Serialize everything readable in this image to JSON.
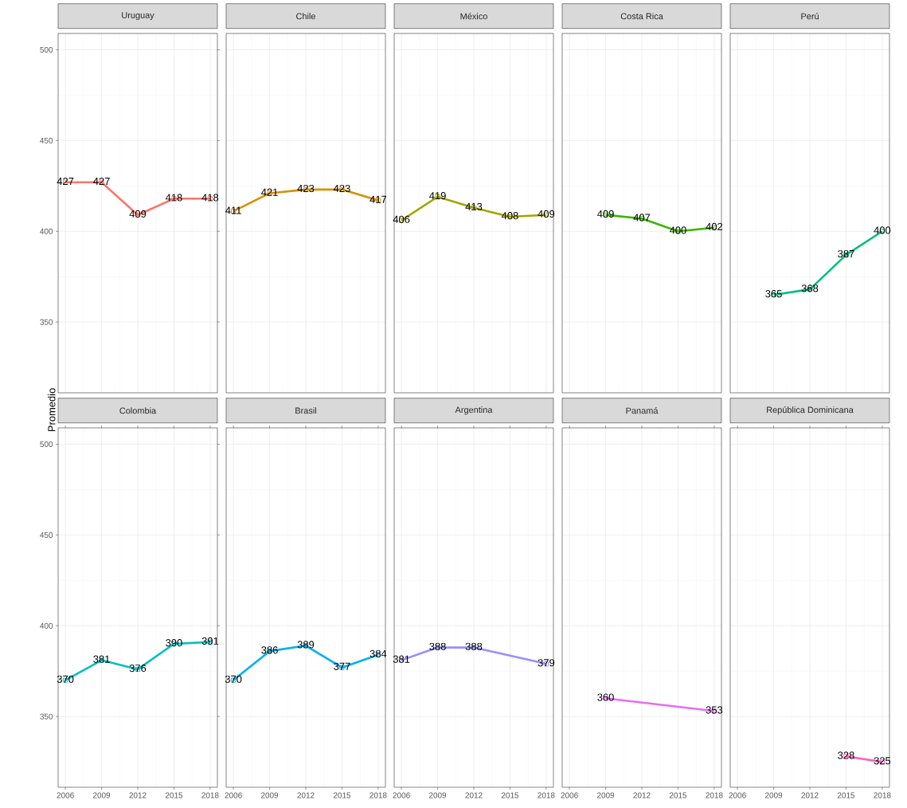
{
  "chart_data": [
    {
      "type": "line",
      "title": "Uruguay",
      "x": [
        2006,
        2009,
        2012,
        2015,
        2018
      ],
      "values": [
        427,
        427,
        409,
        418,
        418
      ],
      "color": "#F8766D",
      "xlim": [
        2005.4,
        2018.6
      ],
      "ylim": [
        311,
        509
      ],
      "xticks": [
        2006,
        2009,
        2012,
        2015,
        2018
      ],
      "yticks": [
        350,
        400,
        450,
        500
      ],
      "grid": true,
      "marker": "square",
      "data_labels": true,
      "tick_labels": "y"
    },
    {
      "type": "line",
      "title": "Chile",
      "x": [
        2006,
        2009,
        2012,
        2015,
        2018
      ],
      "values": [
        411,
        421,
        423,
        423,
        417
      ],
      "color": "#D89000",
      "xlim": [
        2005.4,
        2018.6
      ],
      "ylim": [
        311,
        509
      ],
      "xticks": [
        2006,
        2009,
        2012,
        2015,
        2018
      ],
      "yticks": [
        350,
        400,
        450,
        500
      ],
      "grid": true,
      "marker": "square",
      "data_labels": true,
      "tick_labels": false
    },
    {
      "type": "line",
      "title": "México",
      "x": [
        2006,
        2009,
        2012,
        2015,
        2018
      ],
      "values": [
        406,
        419,
        413,
        408,
        409
      ],
      "color": "#A3A500",
      "xlim": [
        2005.4,
        2018.6
      ],
      "ylim": [
        311,
        509
      ],
      "xticks": [
        2006,
        2009,
        2012,
        2015,
        2018
      ],
      "yticks": [
        350,
        400,
        450,
        500
      ],
      "grid": true,
      "marker": "square",
      "data_labels": true,
      "tick_labels": false
    },
    {
      "type": "line",
      "title": "Costa Rica",
      "x": [
        2009,
        2012,
        2015,
        2018
      ],
      "values": [
        409,
        407,
        400,
        402
      ],
      "color": "#39B600",
      "xlim": [
        2005.4,
        2018.6
      ],
      "ylim": [
        311,
        509
      ],
      "xticks": [
        2006,
        2009,
        2012,
        2015,
        2018
      ],
      "yticks": [
        350,
        400,
        450,
        500
      ],
      "grid": true,
      "marker": "square",
      "data_labels": true,
      "tick_labels": false
    },
    {
      "type": "line",
      "title": "Perú",
      "x": [
        2009,
        2012,
        2015,
        2018
      ],
      "values": [
        365,
        368,
        387,
        400
      ],
      "color": "#00BF7D",
      "xlim": [
        2005.4,
        2018.6
      ],
      "ylim": [
        311,
        509
      ],
      "xticks": [
        2006,
        2009,
        2012,
        2015,
        2018
      ],
      "yticks": [
        350,
        400,
        450,
        500
      ],
      "grid": true,
      "marker": "square",
      "data_labels": true,
      "tick_labels": false
    },
    {
      "type": "line",
      "title": "Colombia",
      "ylabel": "Promedio",
      "x": [
        2006,
        2009,
        2012,
        2015,
        2018
      ],
      "values": [
        370,
        381,
        376,
        390,
        391
      ],
      "color": "#00BFC4",
      "xlim": [
        2005.4,
        2018.6
      ],
      "ylim": [
        311,
        509
      ],
      "xticks": [
        2006,
        2009,
        2012,
        2015,
        2018
      ],
      "yticks": [
        350,
        400,
        450,
        500
      ],
      "grid": true,
      "marker": "square",
      "data_labels": true
    },
    {
      "type": "line",
      "title": "Brasil",
      "x": [
        2006,
        2009,
        2012,
        2015,
        2018
      ],
      "values": [
        370,
        386,
        389,
        377,
        384
      ],
      "color": "#00B0F6",
      "xlim": [
        2005.4,
        2018.6
      ],
      "ylim": [
        311,
        509
      ],
      "xticks": [
        2006,
        2009,
        2012,
        2015,
        2018
      ],
      "yticks": [
        350,
        400,
        450,
        500
      ],
      "grid": true,
      "marker": "square",
      "data_labels": true,
      "tick_labels": "x"
    },
    {
      "type": "line",
      "title": "Argentina",
      "x": [
        2006,
        2009,
        2012,
        2018
      ],
      "values": [
        381,
        388,
        388,
        379
      ],
      "color": "#9590FF",
      "xlim": [
        2005.4,
        2018.6
      ],
      "ylim": [
        311,
        509
      ],
      "xticks": [
        2006,
        2009,
        2012,
        2015,
        2018
      ],
      "yticks": [
        350,
        400,
        450,
        500
      ],
      "grid": true,
      "marker": "square",
      "data_labels": true,
      "tick_labels": "x"
    },
    {
      "type": "line",
      "title": "Panamá",
      "x": [
        2009,
        2018
      ],
      "values": [
        360,
        353
      ],
      "color": "#E76BF3",
      "xlim": [
        2005.4,
        2018.6
      ],
      "ylim": [
        311,
        509
      ],
      "xticks": [
        2006,
        2009,
        2012,
        2015,
        2018
      ],
      "yticks": [
        350,
        400,
        450,
        500
      ],
      "grid": true,
      "marker": "square",
      "data_labels": true,
      "tick_labels": "x"
    },
    {
      "type": "line",
      "title": "República Dominicana",
      "x": [
        2015,
        2018
      ],
      "values": [
        328,
        325
      ],
      "color": "#FF62BC",
      "xlim": [
        2005.4,
        2018.6
      ],
      "ylim": [
        311,
        509
      ],
      "xticks": [
        2006,
        2009,
        2012,
        2015,
        2018
      ],
      "yticks": [
        350,
        400,
        450,
        500
      ],
      "grid": true,
      "marker": "square",
      "data_labels": true,
      "tick_labels": "x"
    }
  ]
}
